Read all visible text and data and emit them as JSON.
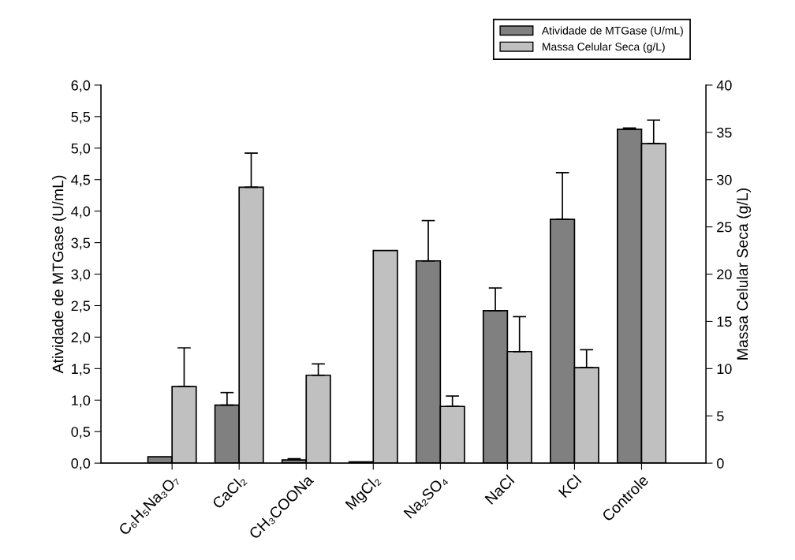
{
  "chart_data": {
    "type": "bar",
    "categories": [
      "C₆H₅Na₃O₇",
      "CaCl₂",
      "CH₃COONa",
      "MgCl₂",
      "Na₂SO₄",
      "NaCl",
      "KCl",
      "Controle"
    ],
    "ylabel": "Atividade de MTGase (U/mL)",
    "y2label": "Massa Celular Seca (g/L)",
    "series": [
      {
        "name": "Atividade de MTGase (U/mL)",
        "color": "#808080",
        "values": [
          0.1,
          0.92,
          0.05,
          0.02,
          3.21,
          2.42,
          3.87,
          5.3
        ],
        "errors": [
          null,
          [
            0.92,
            1.12
          ],
          [
            0.05,
            0.07
          ],
          null,
          [
            3.21,
            3.85
          ],
          [
            2.42,
            2.78
          ],
          [
            3.87,
            4.61
          ],
          [
            5.3,
            5.32
          ]
        ]
      },
      {
        "name": "Massa Celular Seca (g/L)",
        "color": "#c0c0c0",
        "axis": "y2",
        "values": [
          8.1,
          29.2,
          9.3,
          22.5,
          6.0,
          11.8,
          10.1,
          33.8
        ],
        "errors": [
          [
            8.1,
            12.2
          ],
          [
            29.2,
            32.8
          ],
          [
            9.3,
            10.5
          ],
          null,
          [
            6.0,
            7.1
          ],
          [
            11.8,
            15.5
          ],
          [
            10.1,
            12.0
          ],
          [
            33.8,
            36.3
          ]
        ]
      }
    ],
    "ylim": [
      0,
      6
    ],
    "yticks": [
      {
        "value": 0,
        "label": "0,0"
      },
      {
        "value": 0.5,
        "label": "0,5"
      },
      {
        "value": 1,
        "label": "1,0"
      },
      {
        "value": 1.5,
        "label": "1,5"
      },
      {
        "value": 2,
        "label": "2,0"
      },
      {
        "value": 2.5,
        "label": "2,5"
      },
      {
        "value": 3,
        "label": "3,0"
      },
      {
        "value": 3.5,
        "label": "3,5"
      },
      {
        "value": 4,
        "label": "4,0"
      },
      {
        "value": 4.5,
        "label": "4,5"
      },
      {
        "value": 5,
        "label": "5,0"
      },
      {
        "value": 5.5,
        "label": "5,5"
      },
      {
        "value": 6,
        "label": "6,0"
      }
    ],
    "y2lim": [
      0,
      40
    ],
    "y2ticks": [
      0,
      5,
      10,
      15,
      20,
      25,
      30,
      35,
      40
    ],
    "grid": false,
    "legend": "top right"
  }
}
